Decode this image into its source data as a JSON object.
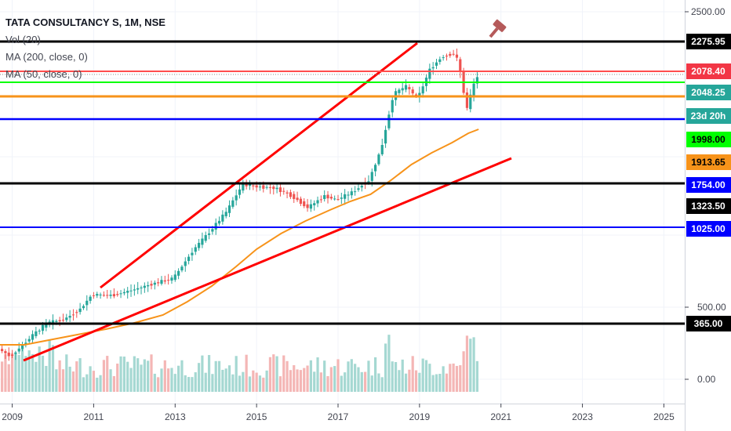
{
  "chart_data": {
    "type": "candlestick",
    "title": "TATA CONSULTANCY S, 1M, NSE",
    "indicators": [
      "Vol (20)",
      "MA (200, close, 0)",
      "MA (50, close, 0)"
    ],
    "x_ticks": [
      "2009",
      "2011",
      "2013",
      "2015",
      "2017",
      "2019",
      "2021",
      "2023",
      "2025"
    ],
    "y_ticks": [
      "2500.00",
      "500.00",
      "0.00"
    ],
    "x_range": [
      2008.7,
      2025.3
    ],
    "price_levels": [
      {
        "label": "2275.95",
        "value": 2275.95,
        "color": "#000000",
        "text_color": "#ffffff"
      },
      {
        "label": "2078.40",
        "value": 2078.4,
        "color": "#f23645",
        "text_color": "#ffffff"
      },
      {
        "label": "2048.25",
        "value": 2048.25,
        "color": "#26a69a",
        "text_color": "#ffffff"
      },
      {
        "label": "23d 20h",
        "value": 2030,
        "color": "#26a69a",
        "text_color": "#ffffff"
      },
      {
        "label": "1998.00",
        "value": 1998.0,
        "color": "#00ff00",
        "text_color": "#000000"
      },
      {
        "label": "1913.65",
        "value": 1913.65,
        "color": "#f7931a",
        "text_color": "#000000"
      },
      {
        "label": "1754.00",
        "value": 1754.0,
        "color": "#0000ff",
        "text_color": "#ffffff"
      },
      {
        "label": "1323.50",
        "value": 1323.5,
        "color": "#000000",
        "text_color": "#ffffff"
      },
      {
        "label": "1025.00",
        "value": 1025.0,
        "color": "#0000ff",
        "text_color": "#ffffff"
      },
      {
        "label": "365.00",
        "value": 365.0,
        "color": "#000000",
        "text_color": "#ffffff"
      }
    ],
    "colors": {
      "up": "#26a69a",
      "down": "#ef5350",
      "ma50": "#f7931a",
      "trend": "#ff0000"
    },
    "icons": [
      "gavel-icon"
    ]
  }
}
